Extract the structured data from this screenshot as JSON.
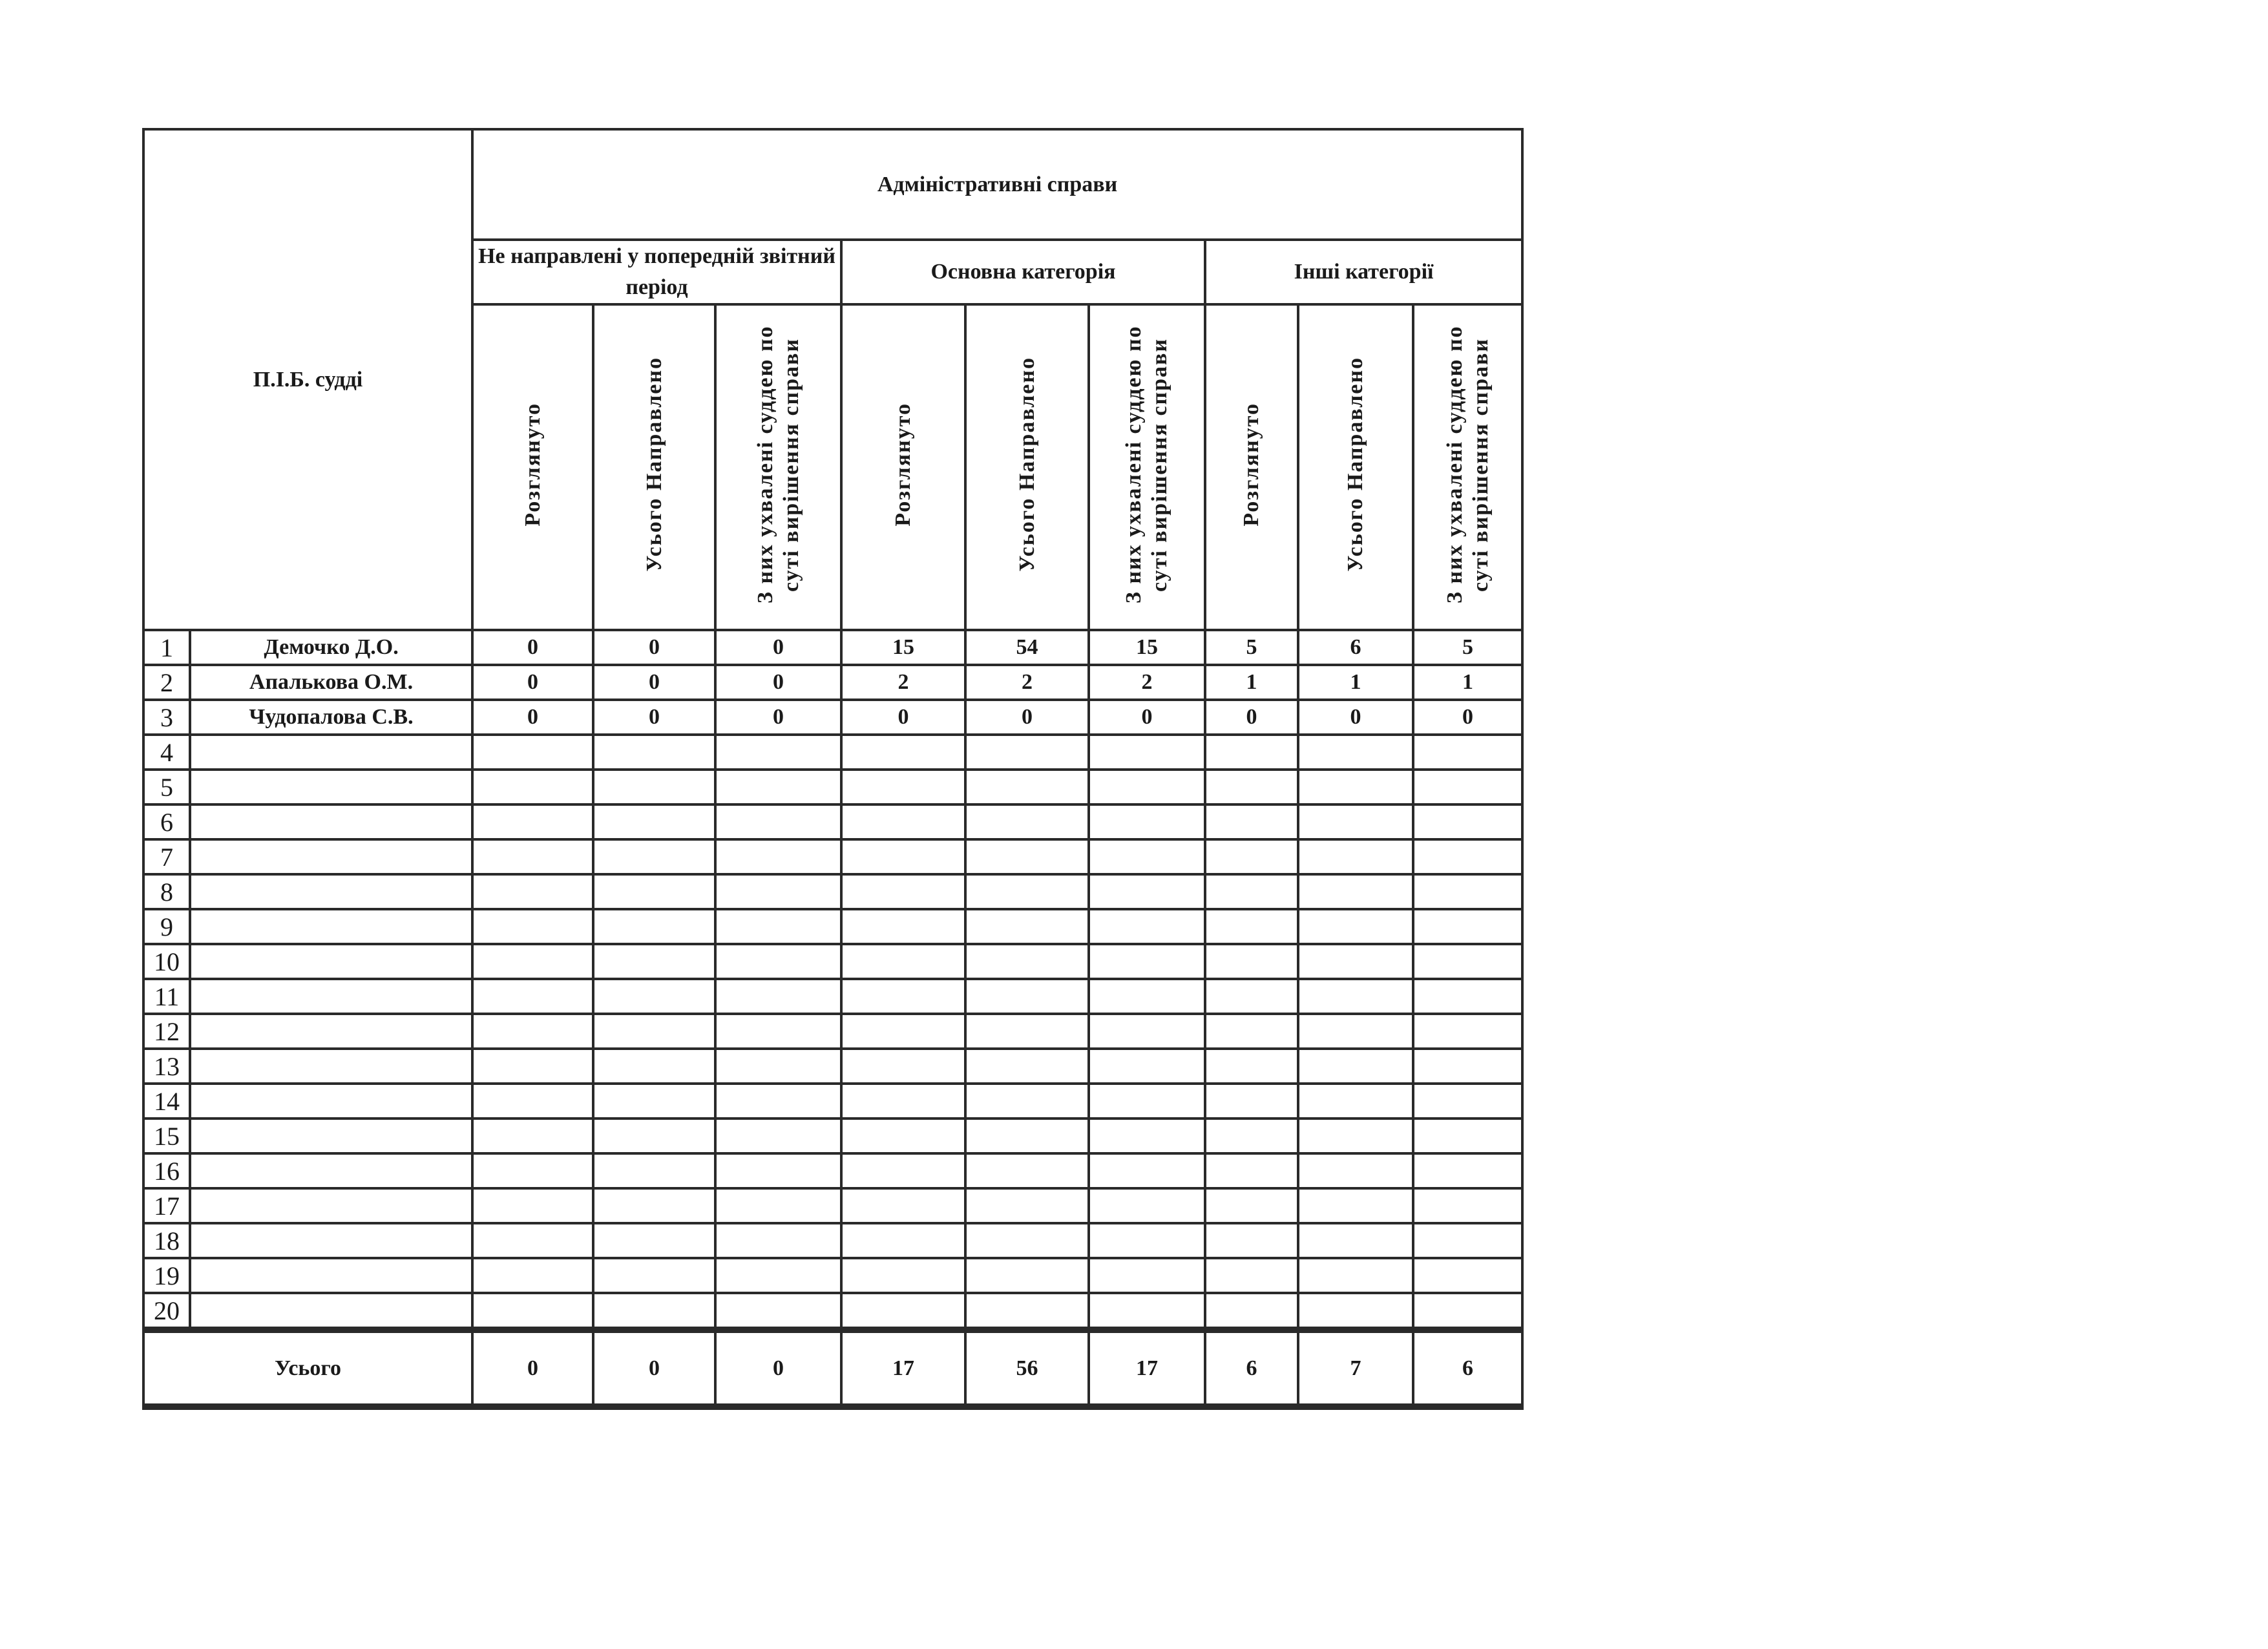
{
  "header": {
    "judge_name_label": "П.І.Б. судді",
    "main_title": "Адміністративні справи",
    "groups": [
      {
        "label": "Не направлені у попередній звітний період"
      },
      {
        "label": "Основна категорія"
      },
      {
        "label": "Інші категорії"
      }
    ],
    "columns": [
      "Розглянуто",
      "Усього Направлено",
      "З них ухвалені суддею по суті вирішення справи",
      "Розглянуто",
      "Усього Направлено",
      "З них ухвалені суддею по суті вирішення справи",
      "Розглянуто",
      "Усього Направлено",
      "З них ухвалені суддею по суті вирішення справи"
    ]
  },
  "rows": [
    {
      "num": "1",
      "name": "Демочко Д.О.",
      "values": [
        "0",
        "0",
        "0",
        "15",
        "54",
        "15",
        "5",
        "6",
        "5"
      ]
    },
    {
      "num": "2",
      "name": "Апалькова О.М.",
      "values": [
        "0",
        "0",
        "0",
        "2",
        "2",
        "2",
        "1",
        "1",
        "1"
      ]
    },
    {
      "num": "3",
      "name": "Чудопалова С.В.",
      "values": [
        "0",
        "0",
        "0",
        "0",
        "0",
        "0",
        "0",
        "0",
        "0"
      ]
    },
    {
      "num": "4",
      "name": "",
      "values": []
    },
    {
      "num": "5",
      "name": "",
      "values": []
    },
    {
      "num": "6",
      "name": "",
      "values": []
    },
    {
      "num": "7",
      "name": "",
      "values": []
    },
    {
      "num": "8",
      "name": "",
      "values": []
    },
    {
      "num": "9",
      "name": "",
      "values": []
    },
    {
      "num": "10",
      "name": "",
      "values": []
    },
    {
      "num": "11",
      "name": "",
      "values": []
    },
    {
      "num": "12",
      "name": "",
      "values": []
    },
    {
      "num": "13",
      "name": "",
      "values": []
    },
    {
      "num": "14",
      "name": "",
      "values": []
    },
    {
      "num": "15",
      "name": "",
      "values": []
    },
    {
      "num": "16",
      "name": "",
      "values": []
    },
    {
      "num": "17",
      "name": "",
      "values": []
    },
    {
      "num": "18",
      "name": "",
      "values": []
    },
    {
      "num": "19",
      "name": "",
      "values": []
    },
    {
      "num": "20",
      "name": "",
      "values": []
    }
  ],
  "total": {
    "label": "Усього",
    "values": [
      "0",
      "0",
      "0",
      "17",
      "56",
      "17",
      "6",
      "7",
      "6"
    ]
  }
}
